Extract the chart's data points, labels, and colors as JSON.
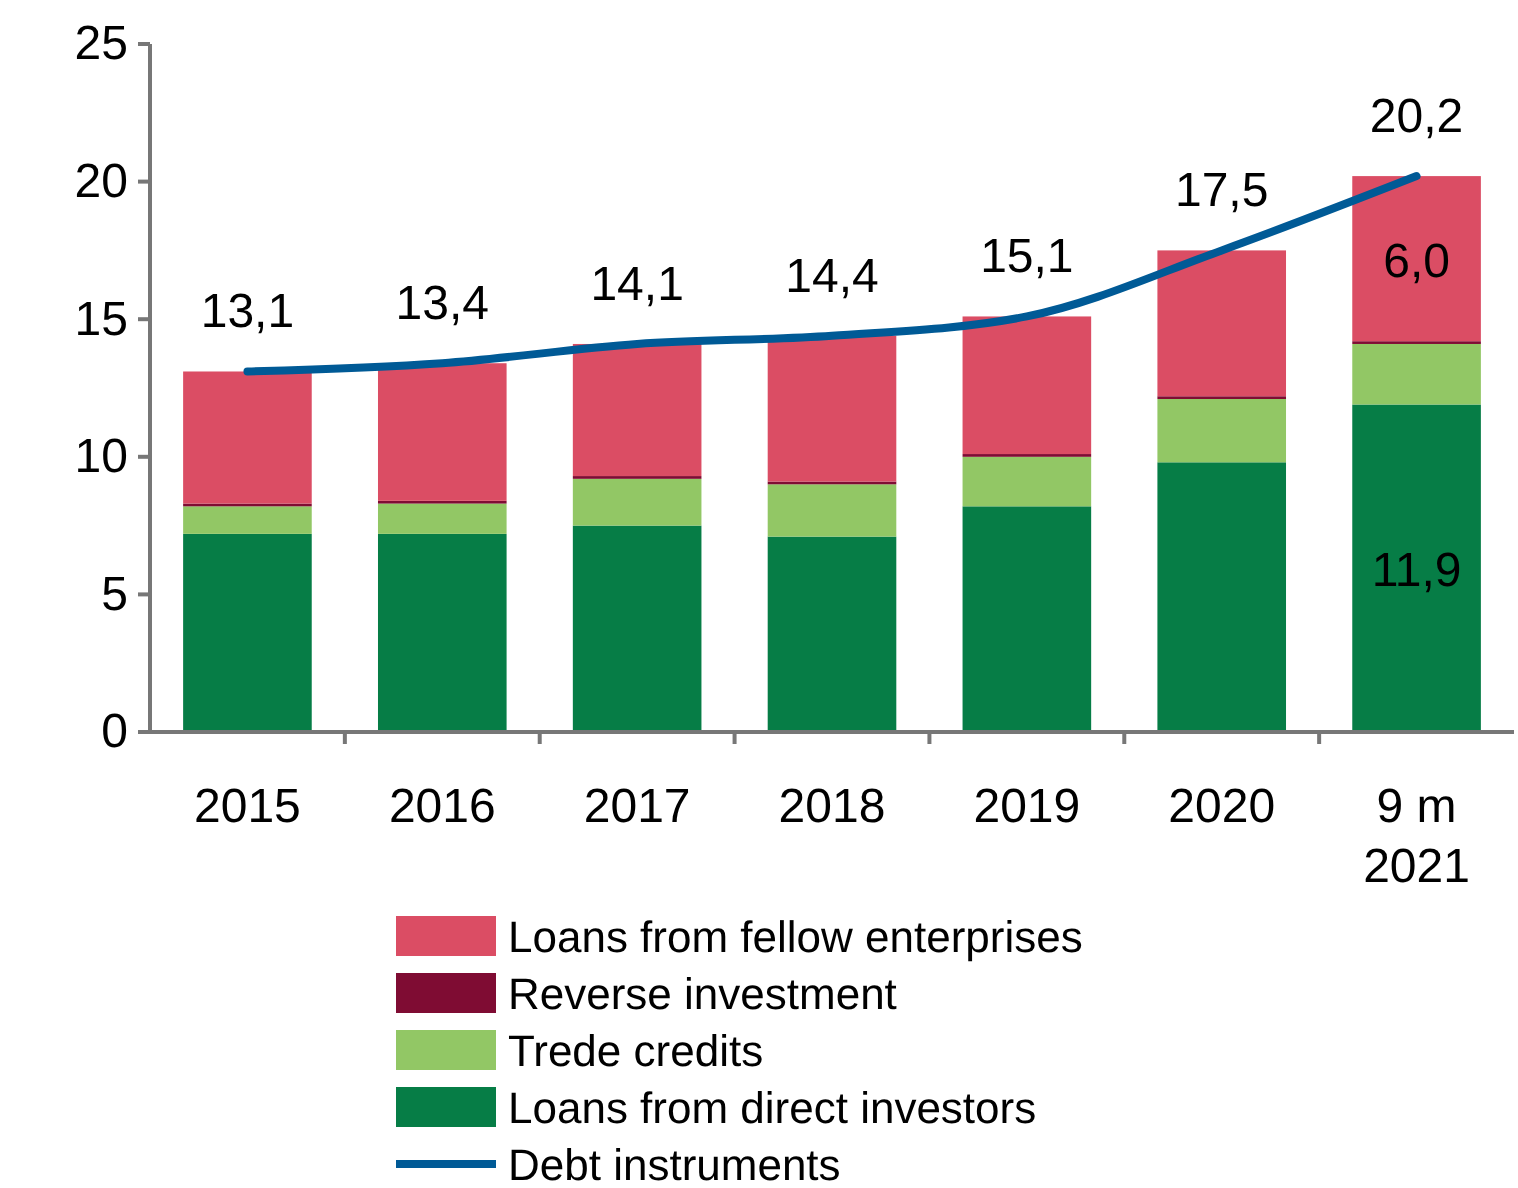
{
  "chart_data": {
    "type": "bar",
    "stacked": true,
    "categories": [
      "2015",
      "2016",
      "2017",
      "2018",
      "2019",
      "2020",
      "9 m 2021"
    ],
    "series": [
      {
        "name": "Loans from direct investors",
        "color": "#067d46",
        "values": [
          7.2,
          7.2,
          7.5,
          7.1,
          8.2,
          9.8,
          11.9
        ],
        "value_labels": [
          null,
          null,
          null,
          null,
          null,
          null,
          "11,9"
        ]
      },
      {
        "name": "Trede credits",
        "color": "#92c765",
        "values": [
          1.0,
          1.1,
          1.7,
          1.9,
          1.8,
          2.3,
          2.2
        ]
      },
      {
        "name": "Reverse investment",
        "color": "#7f0c33",
        "values": [
          0.1,
          0.1,
          0.1,
          0.1,
          0.1,
          0.1,
          0.1
        ]
      },
      {
        "name": "Loans from fellow enterprises",
        "color": "#db4d64",
        "values": [
          4.8,
          5.0,
          4.8,
          5.3,
          5.0,
          5.3,
          6.0
        ],
        "value_labels": [
          null,
          null,
          null,
          null,
          null,
          null,
          "6,0"
        ]
      },
      {
        "name": "Debt instruments",
        "type": "line",
        "color": "#005a96",
        "values": [
          13.1,
          13.4,
          14.1,
          14.4,
          15.1,
          17.5,
          20.2
        ],
        "value_labels": [
          "13,1",
          "13,4",
          "14,1",
          "14,4",
          "15,1",
          "17,5",
          "20,2"
        ]
      }
    ],
    "ylim": [
      0,
      25
    ],
    "yticks": [
      0,
      5,
      10,
      15,
      20,
      25
    ],
    "grid": false,
    "legend": "bottom"
  }
}
